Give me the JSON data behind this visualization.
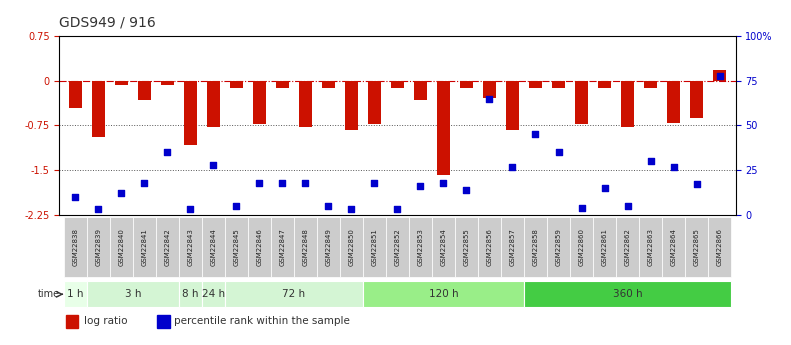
{
  "title": "GDS949 / 916",
  "samples": [
    "GSM22838",
    "GSM22839",
    "GSM22840",
    "GSM22841",
    "GSM22842",
    "GSM22843",
    "GSM22844",
    "GSM22845",
    "GSM22846",
    "GSM22847",
    "GSM22848",
    "GSM22849",
    "GSM22850",
    "GSM22851",
    "GSM22852",
    "GSM22853",
    "GSM22854",
    "GSM22855",
    "GSM22856",
    "GSM22857",
    "GSM22858",
    "GSM22859",
    "GSM22860",
    "GSM22861",
    "GSM22862",
    "GSM22863",
    "GSM22864",
    "GSM22865",
    "GSM22866"
  ],
  "log_ratio": [
    -0.45,
    -0.95,
    -0.07,
    -0.32,
    -0.07,
    -1.08,
    -0.78,
    -0.12,
    -0.72,
    -0.12,
    -0.78,
    -0.12,
    -0.82,
    -0.72,
    -0.12,
    -0.32,
    -1.58,
    -0.12,
    -0.28,
    -0.82,
    -0.12,
    -0.12,
    -0.72,
    -0.12,
    -0.78,
    -0.12,
    -0.7,
    -0.62,
    0.18
  ],
  "percentile_rank": [
    10,
    3,
    12,
    18,
    35,
    3,
    28,
    5,
    18,
    18,
    18,
    5,
    3,
    18,
    3,
    16,
    18,
    14,
    65,
    27,
    45,
    35,
    4,
    15,
    5,
    30,
    27,
    17,
    78
  ],
  "time_groups": [
    {
      "label": "1 h",
      "start": 0,
      "end": 1,
      "color": "#e8ffe8"
    },
    {
      "label": "3 h",
      "start": 1,
      "end": 5,
      "color": "#d4f5d4"
    },
    {
      "label": "8 h",
      "start": 5,
      "end": 6,
      "color": "#d4f5d4"
    },
    {
      "label": "24 h",
      "start": 6,
      "end": 7,
      "color": "#d4f5d4"
    },
    {
      "label": "72 h",
      "start": 7,
      "end": 13,
      "color": "#d4f5d4"
    },
    {
      "label": "120 h",
      "start": 13,
      "end": 20,
      "color": "#99ee88"
    },
    {
      "label": "360 h",
      "start": 20,
      "end": 29,
      "color": "#44cc44"
    }
  ],
  "ylim_left": [
    -2.25,
    0.75
  ],
  "ylim_right": [
    0,
    100
  ],
  "bar_color": "#cc1100",
  "dot_color": "#0000cc",
  "bg_color": "#ffffff",
  "hline_color": "#cc0000",
  "dotted_color": "#555555",
  "label_box_color": "#cccccc",
  "title_fontsize": 10,
  "tick_fontsize": 7,
  "sample_fontsize": 5
}
